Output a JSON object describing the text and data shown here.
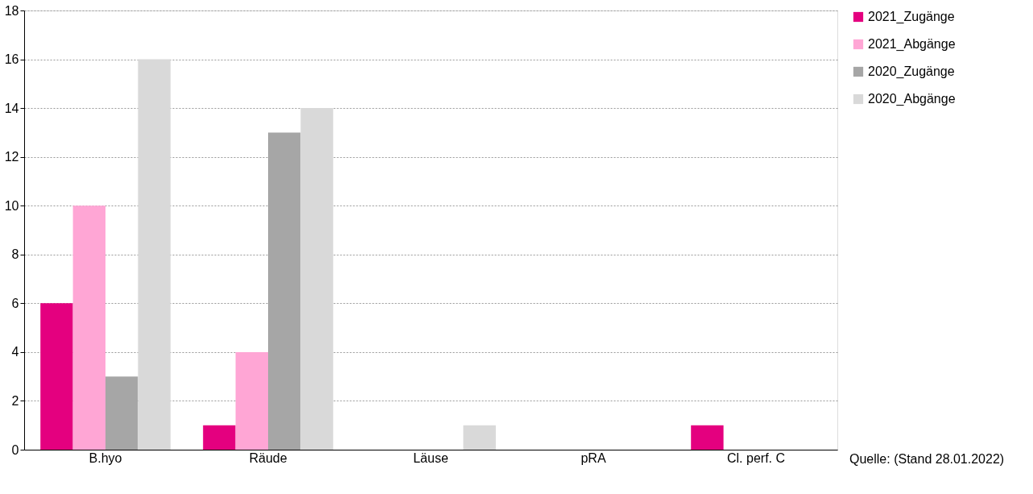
{
  "chart_data": {
    "type": "bar",
    "categories": [
      "B.hyo",
      "Räude",
      "Läuse",
      "pRA",
      "Cl. perf. C"
    ],
    "series": [
      {
        "name": "2021_Zugänge",
        "color": "#e4007f",
        "values": [
          6,
          1,
          0,
          0,
          1
        ]
      },
      {
        "name": "2021_Abgänge",
        "color": "#ffa6d5",
        "values": [
          10,
          4,
          0,
          0,
          0
        ]
      },
      {
        "name": "2020_Zugänge",
        "color": "#a6a6a6",
        "values": [
          3,
          13,
          0,
          0,
          0
        ]
      },
      {
        "name": "2020_Abgänge",
        "color": "#d9d9d9",
        "values": [
          16,
          14,
          1,
          0,
          0
        ]
      }
    ],
    "ylim": [
      0,
      18
    ],
    "yticks": [
      0,
      2,
      4,
      6,
      8,
      10,
      12,
      14,
      16,
      18
    ],
    "grid": "y",
    "legend": "right",
    "annotations": [
      "Quelle: (Stand 28.01.2022)"
    ]
  }
}
